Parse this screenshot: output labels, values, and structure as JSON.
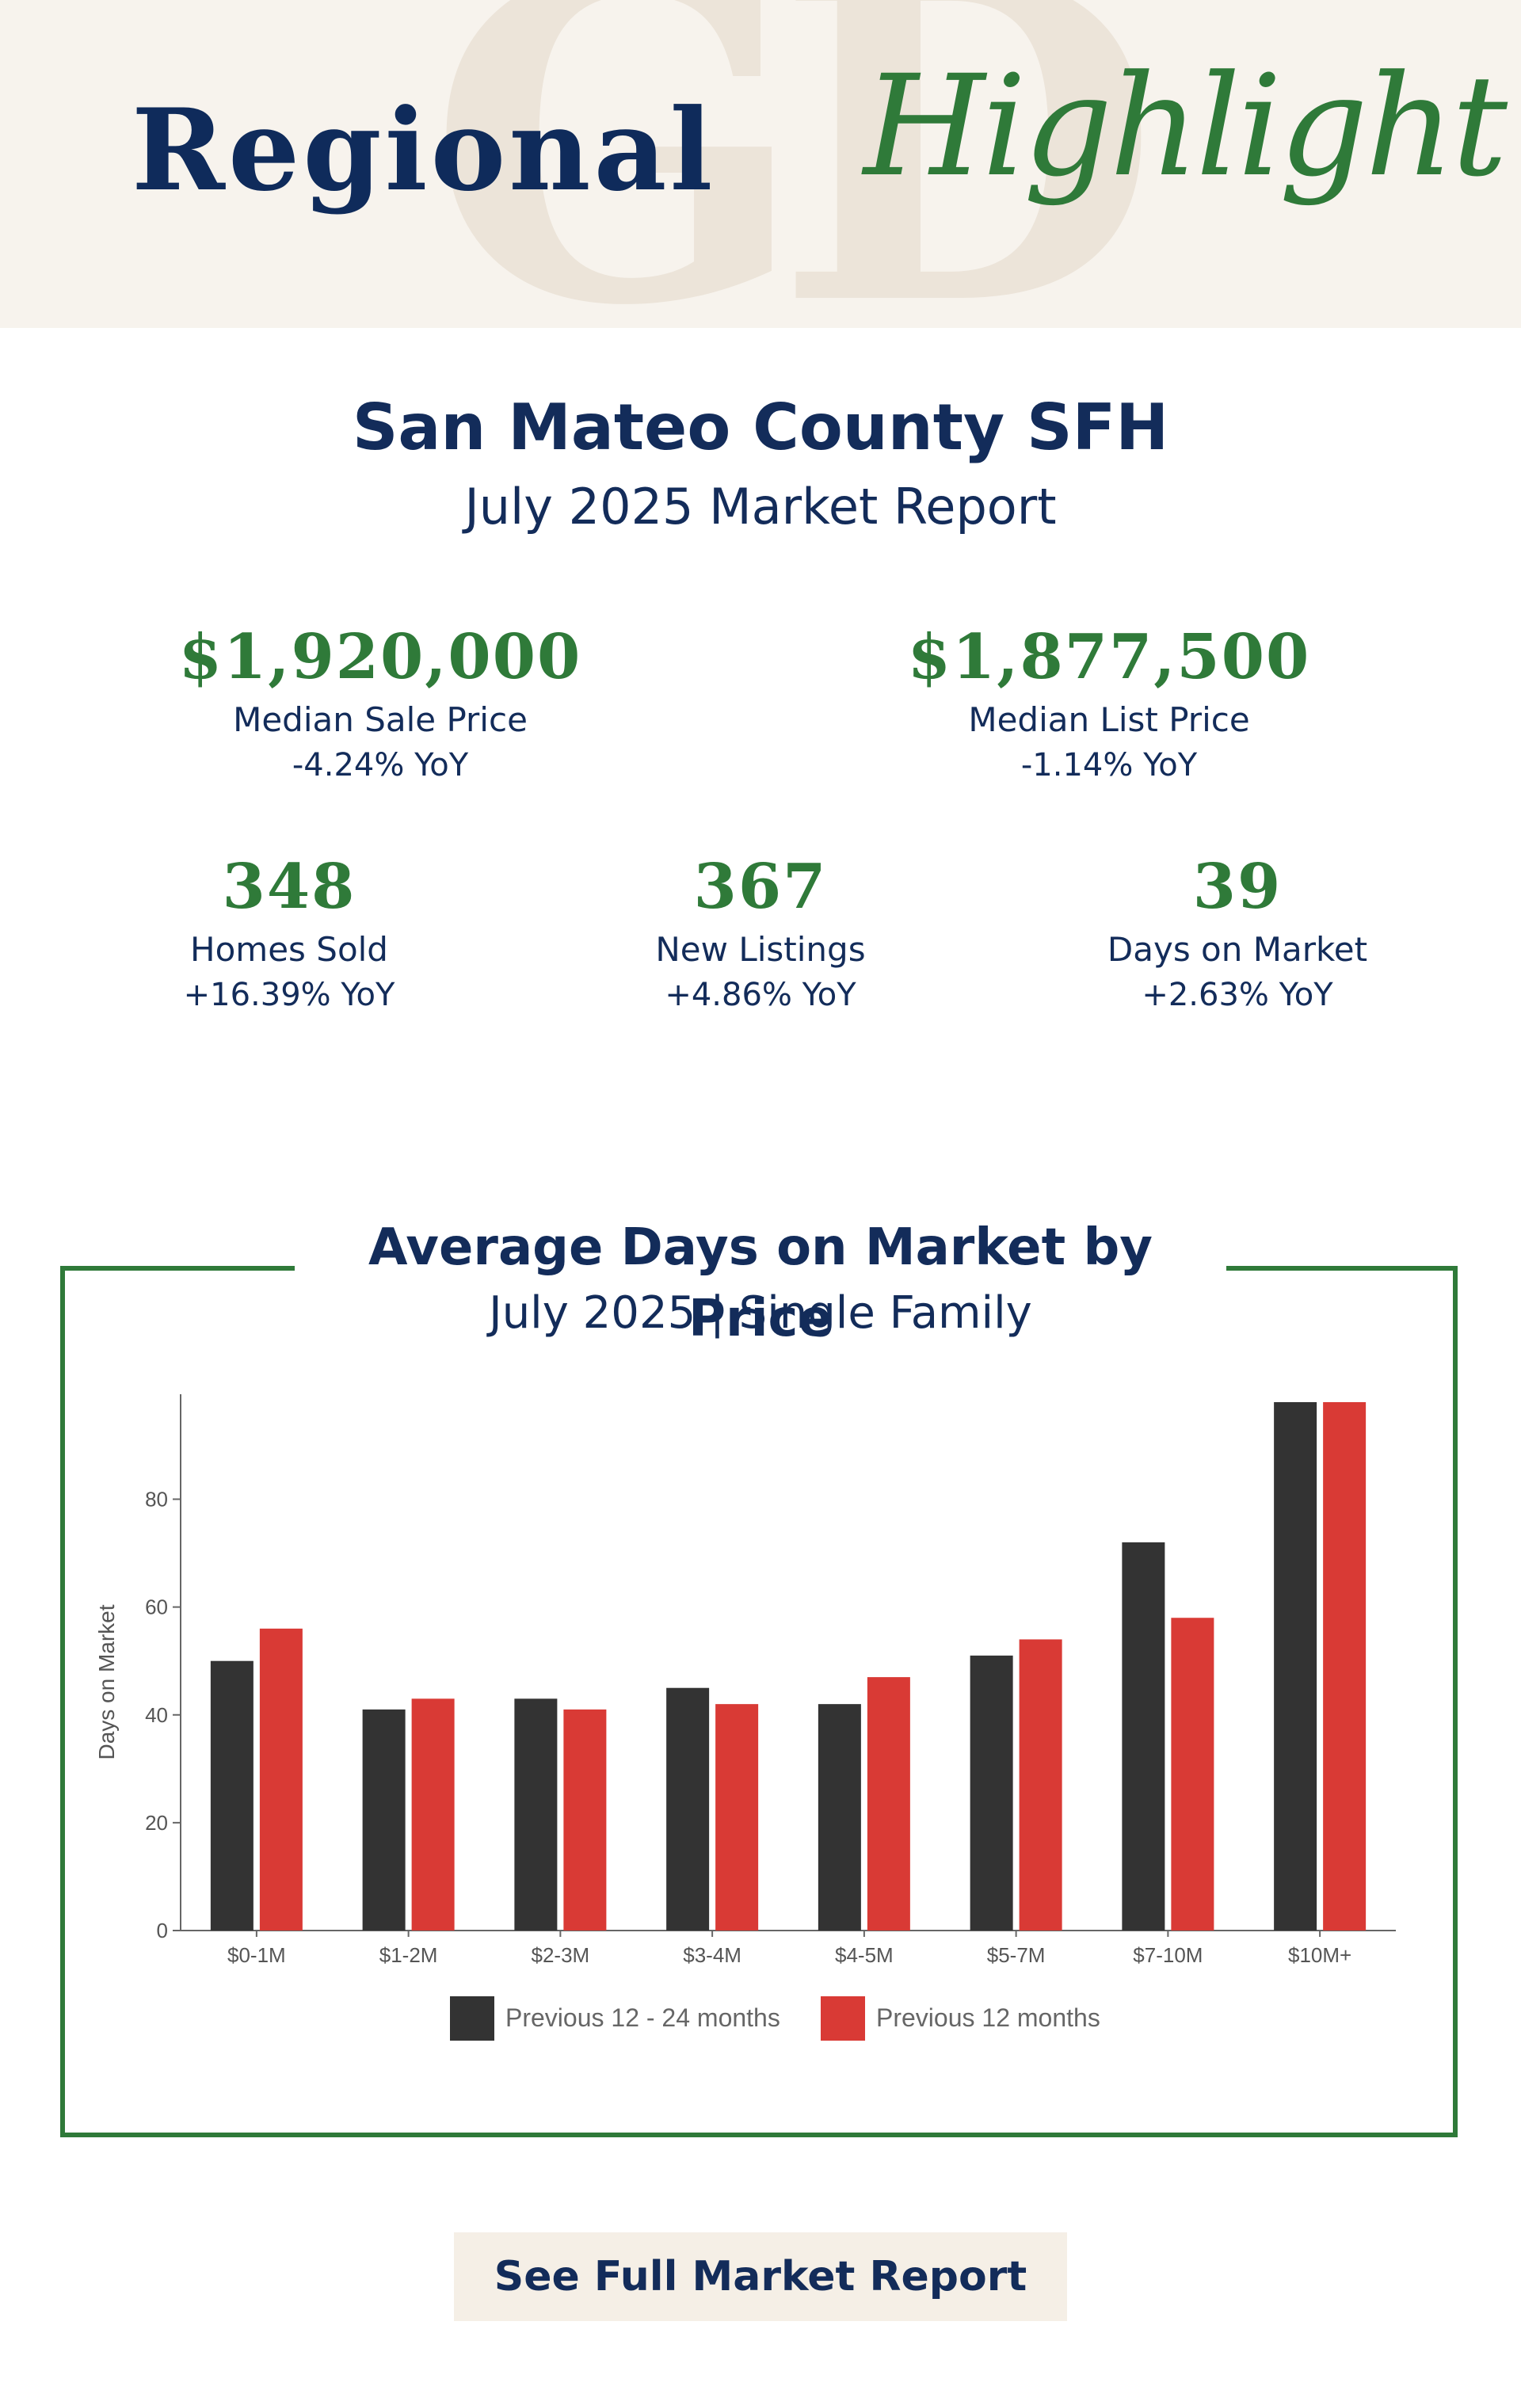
{
  "header": {
    "brand_word1": "Regional",
    "brand_word2": "Highlight",
    "monogram": "GD"
  },
  "report": {
    "title": "San Mateo County SFH",
    "subtitle": "July 2025 Market Report"
  },
  "stats": {
    "median_sale": {
      "value": "$1,920,000",
      "label": "Median Sale Price",
      "change": "-4.24% YoY"
    },
    "median_list": {
      "value": "$1,877,500",
      "label": "Median List Price",
      "change": "-1.14% YoY"
    },
    "homes_sold": {
      "value": "348",
      "label": "Homes Sold",
      "change": "+16.39% YoY"
    },
    "new_listings": {
      "value": "367",
      "label": "New Listings",
      "change": "+4.86% YoY"
    },
    "days_on_market": {
      "value": "39",
      "label": "Days on Market",
      "change": "+2.63% YoY"
    }
  },
  "chart_section": {
    "title": "Average Days on Market by Price",
    "subtitle": "July 2025 | Single Family"
  },
  "chart_data": {
    "type": "bar",
    "categories": [
      "$0-1M",
      "$1-2M",
      "$2-3M",
      "$3-4M",
      "$4-5M",
      "$5-7M",
      "$7-10M",
      "$10M+"
    ],
    "series": [
      {
        "name": "Previous 12 - 24 months",
        "color": "#333333",
        "values": [
          50,
          41,
          43,
          45,
          42,
          51,
          72,
          98
        ]
      },
      {
        "name": "Previous 12 months",
        "color": "#d93a35",
        "values": [
          56,
          43,
          41,
          42,
          47,
          54,
          58,
          98
        ]
      }
    ],
    "ylabel": "Days on Market",
    "xlabel": "",
    "ylim": [
      0,
      98
    ],
    "yticks": [
      0,
      20,
      40,
      60,
      80
    ],
    "legend": "bottom",
    "grid": false
  },
  "cta": {
    "label": "See Full Market Report"
  }
}
